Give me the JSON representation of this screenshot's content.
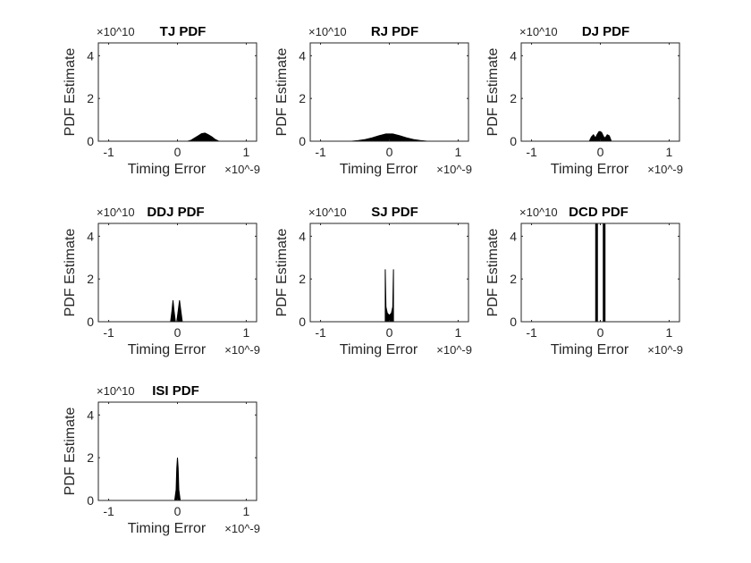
{
  "chart_data": [
    {
      "type": "area",
      "title": "TJ PDF",
      "xlabel": "Timing Error",
      "ylabel": "PDF Estimate",
      "x_exponent": "×10^-9",
      "y_exponent": "×10^10",
      "xlim": [
        -1.15,
        1.15
      ],
      "ylim": [
        0,
        4.6
      ],
      "xticks": [
        "-1",
        "0",
        "1"
      ],
      "yticks": [
        "0",
        "2",
        "4"
      ],
      "x": [
        0.15,
        0.2,
        0.25,
        0.3,
        0.35,
        0.4,
        0.45,
        0.5,
        0.55,
        0.6
      ],
      "y": [
        0,
        0.05,
        0.15,
        0.25,
        0.35,
        0.38,
        0.3,
        0.2,
        0.08,
        0
      ]
    },
    {
      "type": "area",
      "title": "RJ PDF",
      "xlabel": "Timing Error",
      "ylabel": "PDF Estimate",
      "x_exponent": "×10^-9",
      "y_exponent": "×10^10",
      "xlim": [
        -1.15,
        1.15
      ],
      "ylim": [
        0,
        4.6
      ],
      "xticks": [
        "-1",
        "0",
        "1"
      ],
      "yticks": [
        "0",
        "2",
        "4"
      ],
      "x": [
        -0.55,
        -0.45,
        -0.35,
        -0.25,
        -0.15,
        -0.05,
        0.05,
        0.15,
        0.25,
        0.35,
        0.45,
        0.55
      ],
      "y": [
        0,
        0.03,
        0.08,
        0.16,
        0.26,
        0.34,
        0.34,
        0.26,
        0.16,
        0.08,
        0.03,
        0
      ]
    },
    {
      "type": "area",
      "title": "DJ PDF",
      "xlabel": "Timing Error",
      "ylabel": "PDF Estimate",
      "x_exponent": "×10^-9",
      "y_exponent": "×10^10",
      "xlim": [
        -1.15,
        1.15
      ],
      "ylim": [
        0,
        4.6
      ],
      "xticks": [
        "-1",
        "0",
        "1"
      ],
      "yticks": [
        "0",
        "2",
        "4"
      ],
      "x": [
        -0.16,
        -0.13,
        -0.1,
        -0.07,
        -0.05,
        -0.02,
        0,
        0.02,
        0.05,
        0.07,
        0.1,
        0.13,
        0.16
      ],
      "y": [
        0,
        0.2,
        0.3,
        0.15,
        0.3,
        0.45,
        0.45,
        0.4,
        0.2,
        0.15,
        0.3,
        0.25,
        0
      ]
    },
    {
      "type": "area",
      "title": "DDJ PDF",
      "xlabel": "Timing Error",
      "ylabel": "PDF Estimate",
      "x_exponent": "×10^-9",
      "y_exponent": "×10^10",
      "xlim": [
        -1.15,
        1.15
      ],
      "ylim": [
        0,
        4.6
      ],
      "xticks": [
        "-1",
        "0",
        "1"
      ],
      "yticks": [
        "0",
        "2",
        "4"
      ],
      "x": [
        -0.1,
        -0.08,
        -0.065,
        -0.05,
        -0.03,
        -0.01,
        0.01,
        0.03,
        0.05,
        0.07
      ],
      "y": [
        0,
        0.5,
        1.0,
        0.5,
        0,
        0,
        0.5,
        1.0,
        0.5,
        0
      ]
    },
    {
      "type": "area",
      "title": "SJ PDF",
      "xlabel": "Timing Error",
      "ylabel": "PDF Estimate",
      "x_exponent": "×10^-9",
      "y_exponent": "×10^10",
      "xlim": [
        -1.15,
        1.15
      ],
      "ylim": [
        0,
        4.6
      ],
      "xticks": [
        "-1",
        "0",
        "1"
      ],
      "yticks": [
        "0",
        "2",
        "4"
      ],
      "x": [
        -0.06,
        -0.06,
        -0.05,
        -0.03,
        0,
        0.03,
        0.05,
        0.06,
        0.06
      ],
      "y": [
        0,
        2.45,
        0.7,
        0.4,
        0.3,
        0.4,
        0.7,
        2.45,
        0
      ]
    },
    {
      "type": "area",
      "title": "DCD PDF",
      "xlabel": "Timing Error",
      "ylabel": "PDF Estimate",
      "x_exponent": "×10^-9",
      "y_exponent": "×10^10",
      "xlim": [
        -1.15,
        1.15
      ],
      "ylim": [
        0,
        4.6
      ],
      "xticks": [
        "-1",
        "0",
        "1"
      ],
      "yticks": [
        "0",
        "2",
        "4"
      ],
      "x": [
        -0.06,
        -0.055,
        -0.05,
        0.05,
        0.055,
        0.06
      ],
      "y": [
        0,
        5,
        0,
        0,
        5,
        0
      ]
    },
    {
      "type": "area",
      "title": "ISI PDF",
      "xlabel": "Timing Error",
      "ylabel": "PDF Estimate",
      "x_exponent": "×10^-9",
      "y_exponent": "×10^10",
      "xlim": [
        -1.15,
        1.15
      ],
      "ylim": [
        0,
        4.6
      ],
      "xticks": [
        "-1",
        "0",
        "1"
      ],
      "yticks": [
        "0",
        "2",
        "4"
      ],
      "x": [
        -0.04,
        -0.02,
        -0.01,
        0,
        0.01,
        0.02,
        0.04
      ],
      "y": [
        0,
        0.5,
        1.5,
        2.0,
        1.5,
        0.5,
        0
      ]
    }
  ]
}
